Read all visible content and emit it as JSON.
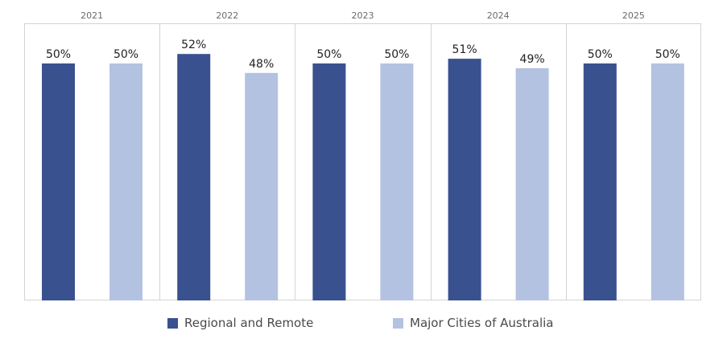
{
  "chart_data": {
    "type": "bar",
    "categories": [
      "2021",
      "2022",
      "2023",
      "2024",
      "2025"
    ],
    "series": [
      {
        "name": "Regional and Remote",
        "color": "#3a5190",
        "values": [
          50,
          52,
          50,
          51,
          50
        ],
        "labels": [
          "50%",
          "52%",
          "50%",
          "51%",
          "50%"
        ]
      },
      {
        "name": "Major Cities of Australia",
        "color": "#b4c2e1",
        "values": [
          50,
          48,
          50,
          49,
          50
        ],
        "labels": [
          "50%",
          "48%",
          "50%",
          "49%",
          "50%"
        ]
      }
    ],
    "value_unit": "%",
    "legend_position": "bottom",
    "grid": false
  }
}
